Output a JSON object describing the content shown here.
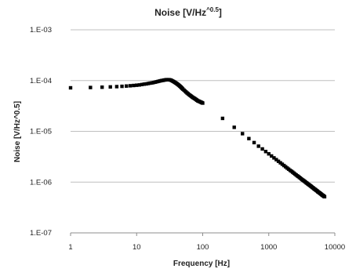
{
  "chart_data": {
    "type": "scatter",
    "title": {
      "main": "Noise [V/Hz",
      "sup": "^0.5",
      "close": "]"
    },
    "xlabel": "Frequency [Hz]",
    "ylabel": "Noise  [V/Hz^0.5]",
    "x_scale": "log",
    "y_scale": "log",
    "xlim": [
      1,
      10000
    ],
    "ylim": [
      1e-07,
      0.001
    ],
    "x_ticks": [
      {
        "value": 1,
        "label": "1"
      },
      {
        "value": 10,
        "label": "10"
      },
      {
        "value": 100,
        "label": "100"
      },
      {
        "value": 1000,
        "label": "1000"
      },
      {
        "value": 10000,
        "label": "10000"
      }
    ],
    "y_ticks": [
      {
        "value": 1e-07,
        "label": "1.E-07"
      },
      {
        "value": 1e-06,
        "label": "1.E-06"
      },
      {
        "value": 1e-05,
        "label": "1.E-05"
      },
      {
        "value": 0.0001,
        "label": "1.E-04"
      },
      {
        "value": 0.001,
        "label": "1.E-03"
      }
    ],
    "grid": "horizontal",
    "marker_color": "#000000",
    "series": [
      {
        "x": [
          1,
          2,
          3,
          4,
          5,
          6,
          7,
          8,
          9,
          10,
          11,
          12,
          13,
          14,
          15,
          16,
          17,
          18,
          19,
          20,
          21,
          22,
          23,
          24,
          25,
          26,
          27,
          28,
          29,
          30,
          31,
          32,
          33,
          34,
          35,
          36,
          37,
          38,
          39,
          40,
          41,
          42,
          43,
          44,
          45,
          46,
          47,
          48,
          49,
          50,
          52,
          54,
          56,
          58,
          60,
          62,
          64,
          66,
          68,
          70,
          72,
          74,
          76,
          78,
          80,
          82,
          84,
          86,
          88,
          90,
          92,
          94,
          96,
          98,
          100,
          200,
          300,
          400,
          500,
          600,
          700,
          800,
          900,
          1000,
          1100,
          1200,
          1300,
          1400,
          1500,
          1600,
          1700,
          1800,
          1900,
          2000,
          2100,
          2200,
          2300,
          2400,
          2500,
          2600,
          2700,
          2800,
          2900,
          3000,
          3100,
          3200,
          3300,
          3400,
          3500,
          3600,
          3700,
          3800,
          3900,
          4000,
          4100,
          4200,
          4300,
          4400,
          4500,
          4600,
          4700,
          4800,
          4900,
          5000,
          5100,
          5200,
          5300,
          5400,
          5500,
          5600,
          5700,
          5800,
          5900,
          6000,
          6100,
          6200,
          6300,
          6400,
          6500,
          6600,
          6700,
          6800,
          6900,
          7000
        ],
        "y": [
          7.2e-05,
          7.3e-05,
          7.4e-05,
          7.5e-05,
          7.6e-05,
          7.7e-05,
          7.8e-05,
          7.9e-05,
          8e-05,
          8.1e-05,
          8.2e-05,
          8.35e-05,
          8.5e-05,
          8.6e-05,
          8.75e-05,
          8.9e-05,
          9e-05,
          9.15e-05,
          9.3e-05,
          9.45e-05,
          9.6e-05,
          9.75e-05,
          9.9e-05,
          0.0001,
          0.000101,
          0.000102,
          0.000103,
          0.000104,
          0.000104,
          0.000104,
          0.000104,
          0.000103,
          0.000102,
          0.0001,
          9.8e-05,
          9.6e-05,
          9.4e-05,
          9.2e-05,
          9e-05,
          8.8e-05,
          8.6e-05,
          8.4e-05,
          8.2e-05,
          8e-05,
          7.8e-05,
          7.6e-05,
          7.4e-05,
          7.2e-05,
          7e-05,
          6.8e-05,
          6.5e-05,
          6.2e-05,
          5.95e-05,
          5.7e-05,
          5.5e-05,
          5.3e-05,
          5.15e-05,
          5e-05,
          4.85e-05,
          4.7e-05,
          4.6e-05,
          4.5e-05,
          4.4e-05,
          4.3e-05,
          4.2e-05,
          4.1e-05,
          4e-05,
          3.95e-05,
          3.9e-05,
          3.85e-05,
          3.8e-05,
          3.75e-05,
          3.7e-05,
          3.65e-05,
          3.6e-05,
          1.8e-05,
          1.2e-05,
          9e-06,
          7.2e-06,
          6e-06,
          5.1e-06,
          4.5e-06,
          4e-06,
          3.6e-06,
          3.27e-06,
          3e-06,
          2.77e-06,
          2.57e-06,
          2.4e-06,
          2.25e-06,
          2.12e-06,
          2e-06,
          1.89e-06,
          1.8e-06,
          1.71e-06,
          1.64e-06,
          1.57e-06,
          1.5e-06,
          1.44e-06,
          1.38e-06,
          1.33e-06,
          1.29e-06,
          1.24e-06,
          1.2e-06,
          1.16e-06,
          1.12e-06,
          1.09e-06,
          1.06e-06,
          1.03e-06,
          1e-06,
          9.7e-07,
          9.5e-07,
          9.2e-07,
          9e-07,
          8.8e-07,
          8.6e-07,
          8.4e-07,
          8.2e-07,
          8e-07,
          7.8e-07,
          7.7e-07,
          7.5e-07,
          7.3e-07,
          7.2e-07,
          7.1e-07,
          6.9e-07,
          6.8e-07,
          6.7e-07,
          6.5e-07,
          6.4e-07,
          6.3e-07,
          6.2e-07,
          6.1e-07,
          6e-07,
          5.9e-07,
          5.8e-07,
          5.7e-07,
          5.6e-07,
          5.5e-07,
          5.45e-07,
          5.4e-07,
          5.3e-07,
          5.2e-07,
          5.15e-07
        ]
      }
    ]
  }
}
